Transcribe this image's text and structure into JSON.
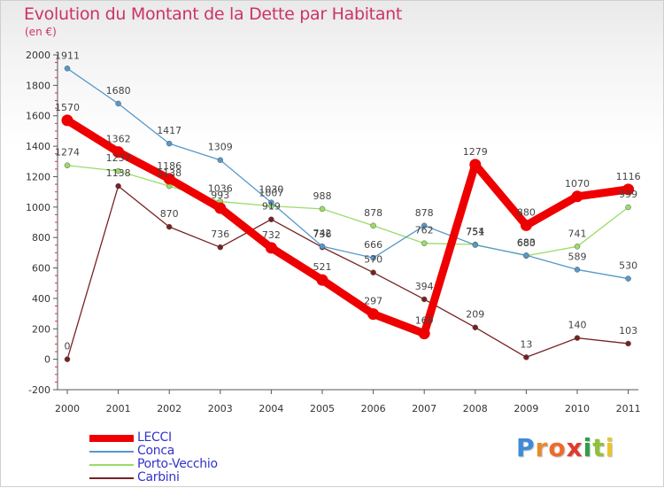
{
  "header": {
    "title": "Evolution du Montant de la Dette par Habitant",
    "subtitle": "(en €)"
  },
  "brand": {
    "logo_text": "Proxiti",
    "logo_colors": [
      "#3f8ad8",
      "#e88b2e",
      "#ef6a2a",
      "#e23a2a",
      "#2f9e48",
      "#8fc23a",
      "#e8c62a"
    ]
  },
  "chart_data": {
    "type": "line",
    "title": "Evolution du Montant de la Dette par Habitant",
    "subtitle": "(en €)",
    "xlabel": "",
    "ylabel": "",
    "categories": [
      "2000",
      "2001",
      "2002",
      "2003",
      "2004",
      "2005",
      "2006",
      "2007",
      "2008",
      "2009",
      "2010",
      "2011"
    ],
    "ylim": [
      -200,
      2000
    ],
    "yticks": [
      "-200",
      "0",
      "200",
      "400",
      "600",
      "800",
      "1000",
      "1200",
      "1400",
      "1600",
      "1800",
      "2000"
    ],
    "grid": false,
    "legend_position": "bottom-left",
    "series": [
      {
        "name": "LECCI",
        "color": "#ee0000",
        "values": [
          1570,
          1362,
          1186,
          993,
          732,
          521,
          297,
          169,
          1279,
          880,
          1070,
          1116
        ],
        "labels": [
          "1570",
          "1362",
          "1186",
          "993",
          "732",
          "521",
          "297",
          "169",
          "1279",
          "880",
          "1070",
          "1116"
        ]
      },
      {
        "name": "Conca",
        "color": "#5599cc",
        "values": [
          1911,
          1680,
          1417,
          1309,
          1030,
          742,
          666,
          878,
          751,
          683,
          589,
          530
        ],
        "labels": [
          "1911",
          "1680",
          "1417",
          "1309",
          "1030",
          "742",
          "666",
          "878",
          "751",
          "683",
          "589",
          "530"
        ]
      },
      {
        "name": "Porto-Vecchio",
        "color": "#99dd66",
        "values": [
          1274,
          1237,
          1138,
          1036,
          1007,
          988,
          878,
          762,
          754,
          680,
          741,
          999
        ],
        "labels": [
          "1274",
          "1237",
          "1138",
          "1036",
          "1007",
          "988",
          "878",
          "762",
          "754",
          "680",
          "741",
          "999"
        ]
      },
      {
        "name": "Carbini",
        "color": "#772222",
        "values": [
          0,
          1138,
          870,
          736,
          919,
          736,
          570,
          394,
          209,
          13,
          140,
          103
        ],
        "labels": [
          "0",
          "1138",
          "870",
          "736",
          "919",
          "736",
          "570",
          "394",
          "209",
          "13",
          "140",
          "103"
        ]
      }
    ]
  }
}
